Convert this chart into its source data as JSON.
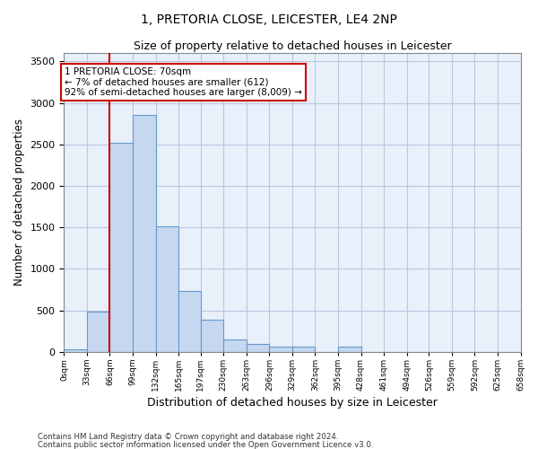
{
  "title": "1, PRETORIA CLOSE, LEICESTER, LE4 2NP",
  "subtitle": "Size of property relative to detached houses in Leicester",
  "xlabel": "Distribution of detached houses by size in Leicester",
  "ylabel": "Number of detached properties",
  "bar_color": "#c5d8f0",
  "bar_edge_color": "#6699cc",
  "background_color": "#e8f0fa",
  "grid_color": "#b8c8e0",
  "annotation_box_color": "#cc0000",
  "vline_color": "#cc0000",
  "vline_x": 66,
  "annotation_text": "1 PRETORIA CLOSE: 70sqm\n← 7% of detached houses are smaller (612)\n92% of semi-detached houses are larger (8,009) →",
  "footnote1": "Contains HM Land Registry data © Crown copyright and database right 2024.",
  "footnote2": "Contains public sector information licensed under the Open Government Licence v3.0.",
  "bins": [
    0,
    33,
    66,
    99,
    132,
    165,
    197,
    230,
    263,
    296,
    329,
    362,
    395,
    428,
    461,
    494,
    526,
    559,
    592,
    625,
    658
  ],
  "counts": [
    30,
    480,
    2520,
    2850,
    1510,
    730,
    390,
    145,
    90,
    65,
    60,
    0,
    60,
    0,
    0,
    0,
    0,
    0,
    0,
    0
  ],
  "ylim": [
    0,
    3600
  ],
  "yticks": [
    0,
    500,
    1000,
    1500,
    2000,
    2500,
    3000,
    3500
  ]
}
